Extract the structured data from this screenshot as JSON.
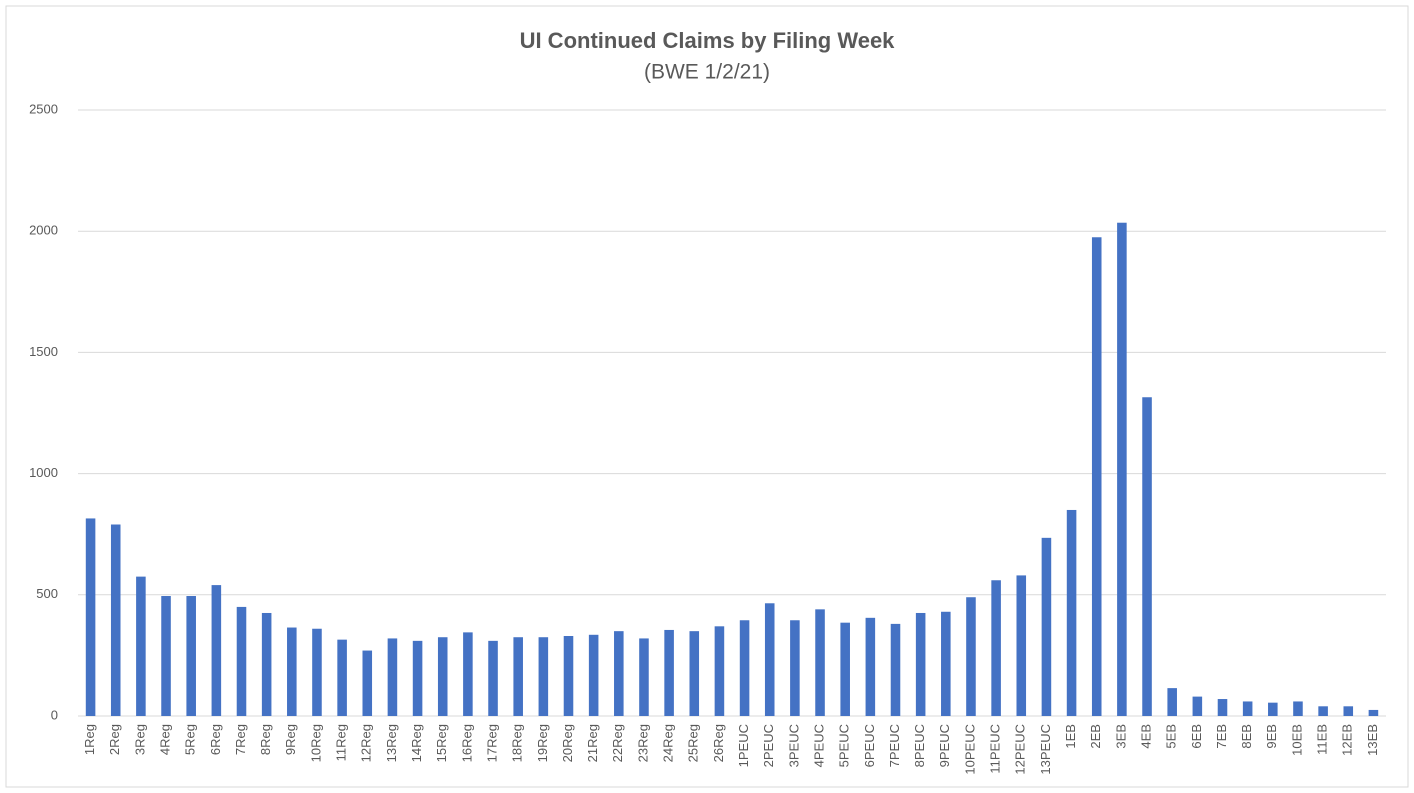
{
  "chart_data": {
    "type": "bar",
    "title": "UI Continued Claims by Filing Week",
    "subtitle": "(BWE 1/2/21)",
    "categories": [
      "1Reg",
      "2Reg",
      "3Reg",
      "4Reg",
      "5Reg",
      "6Reg",
      "7Reg",
      "8Reg",
      "9Reg",
      "10Reg",
      "11Reg",
      "12Reg",
      "13Reg",
      "14Reg",
      "15Reg",
      "16Reg",
      "17Reg",
      "18Reg",
      "19Reg",
      "20Reg",
      "21Reg",
      "22Reg",
      "23Reg",
      "24Reg",
      "25Reg",
      "26Reg",
      "1PEUC",
      "2PEUC",
      "3PEUC",
      "4PEUC",
      "5PEUC",
      "6PEUC",
      "7PEUC",
      "8PEUC",
      "9PEUC",
      "10PEUC",
      "11PEUC",
      "12PEUC",
      "13PEUC",
      "1EB",
      "2EB",
      "3EB",
      "4EB",
      "5EB",
      "6EB",
      "7EB",
      "8EB",
      "9EB",
      "10EB",
      "11EB",
      "12EB",
      "13EB"
    ],
    "values": [
      815,
      790,
      575,
      495,
      495,
      540,
      450,
      425,
      365,
      360,
      315,
      270,
      320,
      310,
      325,
      345,
      310,
      325,
      325,
      330,
      335,
      350,
      320,
      355,
      350,
      370,
      395,
      465,
      395,
      440,
      385,
      405,
      380,
      425,
      430,
      490,
      560,
      580,
      735,
      850,
      1975,
      2035,
      1315,
      115,
      80,
      70,
      60,
      55,
      60,
      40,
      40,
      25
    ],
    "color": "#4472c4",
    "ylim": [
      0,
      2500
    ],
    "yticks": [
      0,
      500,
      1000,
      1500,
      2000,
      2500
    ],
    "grid": true
  }
}
